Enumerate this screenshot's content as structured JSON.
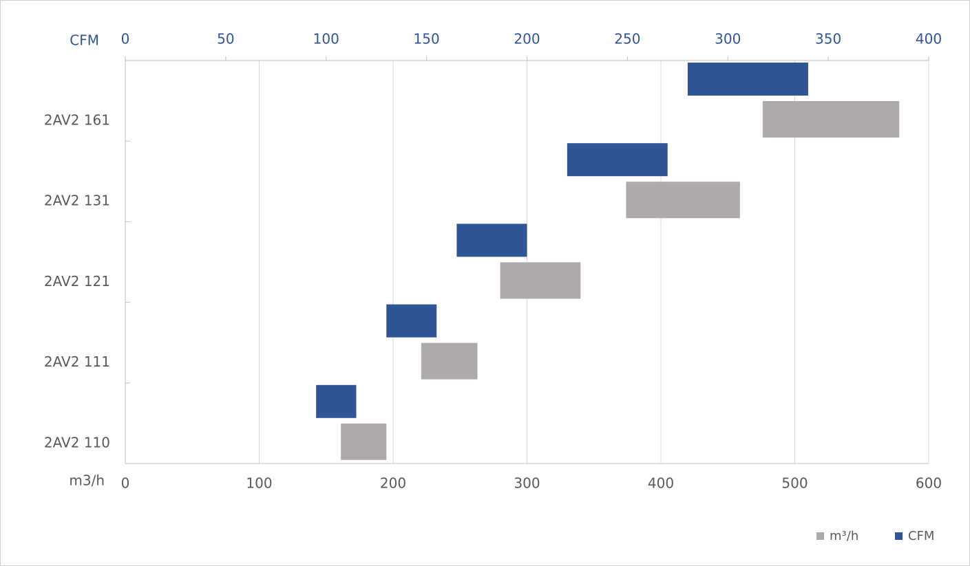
{
  "chart_data": {
    "type": "range-bar",
    "categories": [
      "2AV2 161",
      "2AV2 131",
      "2AV2 121",
      "2AV2 111",
      "2AV2 110"
    ],
    "series": [
      {
        "name": "m³/h",
        "color": "#aeaaaa",
        "start": [
          476,
          374,
          280,
          221,
          161
        ],
        "end": [
          578,
          459,
          340,
          263,
          195
        ]
      },
      {
        "name": "CFM",
        "color": "#2f5597",
        "axis": "x2",
        "start": [
          280,
          220,
          165,
          130,
          95
        ],
        "end": [
          340,
          270,
          200,
          155,
          115
        ]
      }
    ],
    "xlabel": "m3/h",
    "x2label": "CFM",
    "xlim": [
      0,
      600
    ],
    "xticks": [
      0,
      100,
      200,
      300,
      400,
      500,
      600
    ],
    "x2lim": [
      0,
      400
    ],
    "x2ticks": [
      0,
      50,
      100,
      150,
      200,
      250,
      300,
      350,
      400
    ],
    "grid": true,
    "legend": "bottom-right"
  }
}
